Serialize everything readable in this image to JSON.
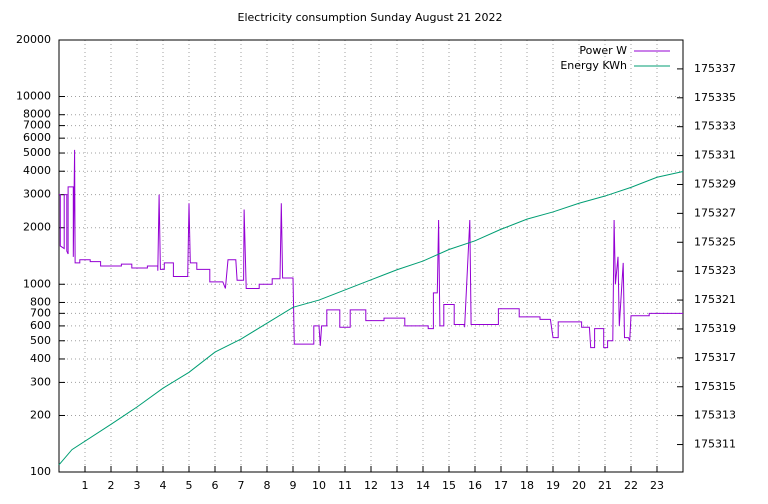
{
  "chart_data": {
    "type": "line",
    "title": "Electricity consumption Sunday August 21 2022",
    "xlim": [
      0,
      24
    ],
    "xticks": [
      1,
      2,
      3,
      4,
      5,
      6,
      7,
      8,
      9,
      10,
      11,
      12,
      13,
      14,
      15,
      16,
      17,
      18,
      19,
      20,
      21,
      22,
      23
    ],
    "ylim": [
      100,
      20000
    ],
    "log_y": true,
    "yticks": [
      100,
      200,
      300,
      400,
      500,
      600,
      700,
      800,
      1000,
      2000,
      3000,
      4000,
      5000,
      6000,
      7000,
      8000,
      10000,
      20000
    ],
    "y2lim": [
      175309.1,
      175339
    ],
    "y2ticks": [
      175311,
      175313,
      175315,
      175317,
      175319,
      175321,
      175323,
      175325,
      175327,
      175329,
      175331,
      175333,
      175335,
      175337
    ],
    "grid": true,
    "legend": "top-right",
    "series": [
      {
        "name": "Power W",
        "color": "#9400d3",
        "axis": "y",
        "x": [
          0,
          0.05,
          0.05,
          0.2,
          0.2,
          0.3,
          0.3,
          0.35,
          0.35,
          0.55,
          0.55,
          0.6,
          0.62,
          0.8,
          0.8,
          1.2,
          1.2,
          1.6,
          1.6,
          2.4,
          2.4,
          2.8,
          2.8,
          3.4,
          3.4,
          3.8,
          3.8,
          3.85,
          3.9,
          4.05,
          4.05,
          4.4,
          4.4,
          4.95,
          5.0,
          5.05,
          5.3,
          5.3,
          5.8,
          5.8,
          6.3,
          6.4,
          6.5,
          6.8,
          6.85,
          7.1,
          7.12,
          7.2,
          7.7,
          7.7,
          8.2,
          8.2,
          8.5,
          8.55,
          8.6,
          9.0,
          9.05,
          9.8,
          9.8,
          10.0,
          10.05,
          10.1,
          10.3,
          10.3,
          10.8,
          10.8,
          11.2,
          11.2,
          11.8,
          11.8,
          12.5,
          12.5,
          13.3,
          13.3,
          14.2,
          14.2,
          14.4,
          14.4,
          14.55,
          14.6,
          14.65,
          14.8,
          14.8,
          15.2,
          15.2,
          15.6,
          15.6,
          15.8,
          15.85,
          16.9,
          16.9,
          17.7,
          17.7,
          18.5,
          18.5,
          18.9,
          19.0,
          19.2,
          19.2,
          20.1,
          20.1,
          20.4,
          20.45,
          20.6,
          20.6,
          20.95,
          20.95,
          21.1,
          21.1,
          21.3,
          21.35,
          21.4,
          21.5,
          21.55,
          21.7,
          21.75,
          21.9,
          21.95,
          22.0,
          22.7,
          22.7,
          24
        ],
        "values": [
          3000,
          3000,
          1600,
          1550,
          3000,
          3000,
          1500,
          1450,
          3300,
          3300,
          1400,
          5200,
          1300,
          1300,
          1350,
          1350,
          1320,
          1320,
          1250,
          1250,
          1280,
          1280,
          1220,
          1220,
          1250,
          1250,
          1180,
          3000,
          1200,
          1200,
          1300,
          1300,
          1100,
          1100,
          2700,
          1300,
          1300,
          1200,
          1200,
          1030,
          1030,
          950,
          1350,
          1350,
          1050,
          1050,
          2500,
          950,
          950,
          1000,
          1000,
          1070,
          1070,
          2700,
          1080,
          1080,
          480,
          480,
          600,
          600,
          470,
          600,
          600,
          730,
          730,
          590,
          590,
          730,
          730,
          640,
          640,
          660,
          660,
          600,
          600,
          580,
          580,
          900,
          900,
          2200,
          600,
          600,
          780,
          780,
          610,
          610,
          590,
          2200,
          610,
          610,
          740,
          740,
          670,
          670,
          650,
          650,
          520,
          520,
          630,
          630,
          590,
          590,
          460,
          460,
          580,
          580,
          460,
          460,
          500,
          500,
          2200,
          1000,
          1400,
          600,
          1300,
          520,
          520,
          500,
          680,
          680,
          700,
          700
        ]
      },
      {
        "name": "Energy KWh",
        "color": "#009e73",
        "axis": "y2",
        "x": [
          0,
          0.5,
          2,
          3,
          4,
          5,
          6,
          7,
          8,
          9,
          10,
          11,
          12,
          13,
          14,
          15,
          16,
          17,
          18,
          19,
          20,
          21,
          22,
          23,
          24
        ],
        "values": [
          175309.6,
          175310.65,
          175312.4,
          175313.6,
          175314.9,
          175316.0,
          175317.4,
          175318.3,
          175319.4,
          175320.5,
          175321.0,
          175321.7,
          175322.4,
          175323.1,
          175323.7,
          175324.5,
          175325.1,
          175325.9,
          175326.6,
          175327.1,
          175327.7,
          175328.2,
          175328.8,
          175329.5,
          175329.9
        ]
      }
    ]
  }
}
